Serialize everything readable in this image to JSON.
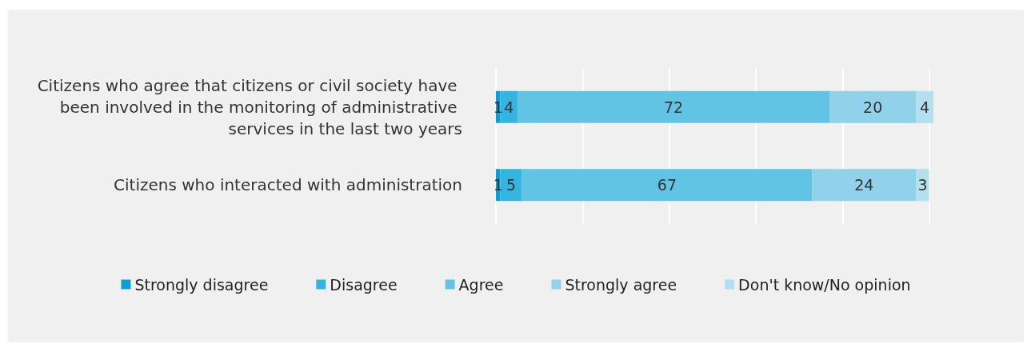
{
  "chart_data": {
    "type": "bar",
    "orientation": "horizontal",
    "stacked": true,
    "categories": [
      "Citizens who agree that citizens or civil society have been involved in the monitoring of administrative services in the last two years",
      "Citizens who interacted with administration"
    ],
    "series": [
      {
        "name": "Strongly disagree",
        "color": "#0aa0d6",
        "values": [
          1,
          1
        ]
      },
      {
        "name": "Disagree",
        "color": "#33b5e0",
        "values": [
          4,
          5
        ]
      },
      {
        "name": "Agree",
        "color": "#62c4e5",
        "values": [
          72,
          67
        ]
      },
      {
        "name": "Strongly agree",
        "color": "#8fd2ea",
        "values": [
          20,
          24
        ]
      },
      {
        "name": "Don't know/No opinion",
        "color": "#b3dfee",
        "values": [
          4,
          3
        ]
      }
    ],
    "xlim": [
      0,
      101
    ],
    "xticks": [
      {
        "value": 0,
        "label": null
      },
      {
        "value": 20,
        "label": null
      },
      {
        "value": 40,
        "label": null
      },
      {
        "value": 60,
        "label": null
      },
      {
        "value": 80,
        "label": null
      },
      {
        "value": 100,
        "label": null
      }
    ],
    "grid": "x",
    "legend": "bottom",
    "data_labels": true
  }
}
